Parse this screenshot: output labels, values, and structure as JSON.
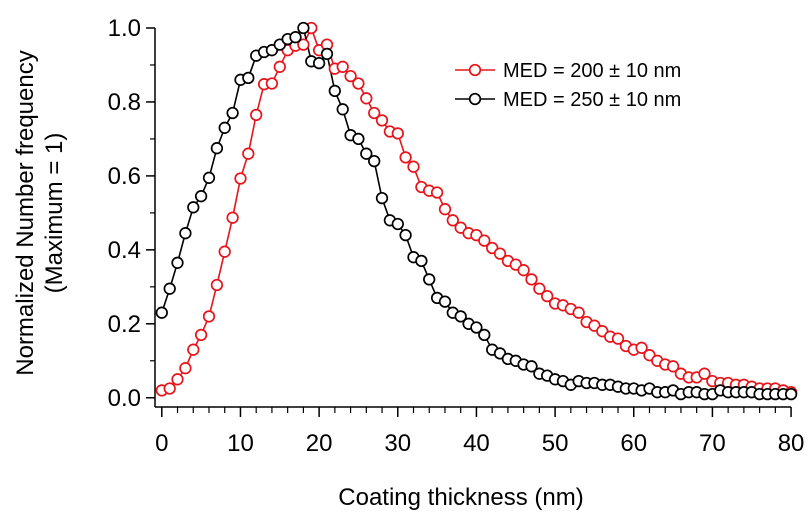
{
  "chart_data": {
    "type": "line",
    "xlabel": "Coating thickness (nm)",
    "ylabel": [
      "Normalized Number frequency",
      "(Maximum = 1)"
    ],
    "xlim": [
      -1.5,
      80.5
    ],
    "ylim": [
      -0.025,
      1.0
    ],
    "xticks": [
      0,
      10,
      20,
      30,
      40,
      50,
      60,
      70,
      80
    ],
    "yticks": [
      0.0,
      0.2,
      0.4,
      0.6,
      0.8,
      1.0
    ],
    "ytick_labels": [
      "0.0",
      "0.2",
      "0.4",
      "0.6",
      "0.8",
      "1.0"
    ],
    "legend_position": "top-right",
    "marker": "open-circle",
    "series": [
      {
        "name": "MED = 200 ± 10 nm",
        "color": "#e8141b",
        "x": [
          0,
          1,
          2,
          3,
          4,
          5,
          6,
          7,
          8,
          9,
          10,
          11,
          12,
          13,
          14,
          15,
          16,
          17,
          18,
          19,
          20,
          21,
          22,
          23,
          24,
          25,
          26,
          27,
          28,
          29,
          30,
          31,
          32,
          33,
          34,
          35,
          36,
          37,
          38,
          39,
          40,
          41,
          42,
          43,
          44,
          45,
          46,
          47,
          48,
          49,
          50,
          51,
          52,
          53,
          54,
          55,
          56,
          57,
          58,
          59,
          60,
          61,
          62,
          63,
          64,
          65,
          66,
          67,
          68,
          69,
          70,
          71,
          72,
          73,
          74,
          75,
          76,
          77,
          78,
          79,
          80
        ],
        "y": [
          0.02,
          0.025,
          0.05,
          0.08,
          0.13,
          0.17,
          0.22,
          0.305,
          0.395,
          0.487,
          0.593,
          0.66,
          0.765,
          0.848,
          0.85,
          0.895,
          0.94,
          0.952,
          0.955,
          1.0,
          0.94,
          0.955,
          0.89,
          0.895,
          0.87,
          0.85,
          0.81,
          0.77,
          0.75,
          0.72,
          0.715,
          0.65,
          0.625,
          0.57,
          0.56,
          0.555,
          0.51,
          0.48,
          0.46,
          0.445,
          0.44,
          0.425,
          0.405,
          0.39,
          0.37,
          0.36,
          0.345,
          0.32,
          0.295,
          0.275,
          0.255,
          0.25,
          0.24,
          0.23,
          0.205,
          0.195,
          0.18,
          0.165,
          0.16,
          0.14,
          0.13,
          0.135,
          0.115,
          0.1,
          0.09,
          0.085,
          0.065,
          0.055,
          0.055,
          0.065,
          0.045,
          0.04,
          0.04,
          0.035,
          0.035,
          0.03,
          0.025,
          0.025,
          0.025,
          0.02,
          0.015
        ]
      },
      {
        "name": "MED = 250 ± 10 nm",
        "color": "#000000",
        "x": [
          0,
          1,
          2,
          3,
          4,
          5,
          6,
          7,
          8,
          9,
          10,
          11,
          12,
          13,
          14,
          15,
          16,
          17,
          18,
          19,
          20,
          21,
          22,
          23,
          24,
          25,
          26,
          27,
          28,
          29,
          30,
          31,
          32,
          33,
          34,
          35,
          36,
          37,
          38,
          39,
          40,
          41,
          42,
          43,
          44,
          45,
          46,
          47,
          48,
          49,
          50,
          51,
          52,
          53,
          54,
          55,
          56,
          57,
          58,
          59,
          60,
          61,
          62,
          63,
          64,
          65,
          66,
          67,
          68,
          69,
          70,
          71,
          72,
          73,
          74,
          75,
          76,
          77,
          78,
          79,
          80
        ],
        "y": [
          0.23,
          0.295,
          0.365,
          0.445,
          0.515,
          0.545,
          0.595,
          0.675,
          0.73,
          0.77,
          0.86,
          0.865,
          0.925,
          0.935,
          0.94,
          0.955,
          0.97,
          0.975,
          1.0,
          0.91,
          0.905,
          0.93,
          0.83,
          0.78,
          0.71,
          0.7,
          0.66,
          0.64,
          0.54,
          0.48,
          0.47,
          0.44,
          0.38,
          0.37,
          0.32,
          0.27,
          0.26,
          0.23,
          0.22,
          0.2,
          0.19,
          0.17,
          0.13,
          0.12,
          0.105,
          0.1,
          0.09,
          0.085,
          0.065,
          0.06,
          0.05,
          0.045,
          0.035,
          0.045,
          0.04,
          0.04,
          0.035,
          0.035,
          0.03,
          0.025,
          0.025,
          0.02,
          0.025,
          0.015,
          0.015,
          0.02,
          0.01,
          0.015,
          0.015,
          0.01,
          0.01,
          0.02,
          0.015,
          0.015,
          0.015,
          0.015,
          0.01,
          0.01,
          0.01,
          0.01,
          0.01
        ]
      }
    ]
  }
}
